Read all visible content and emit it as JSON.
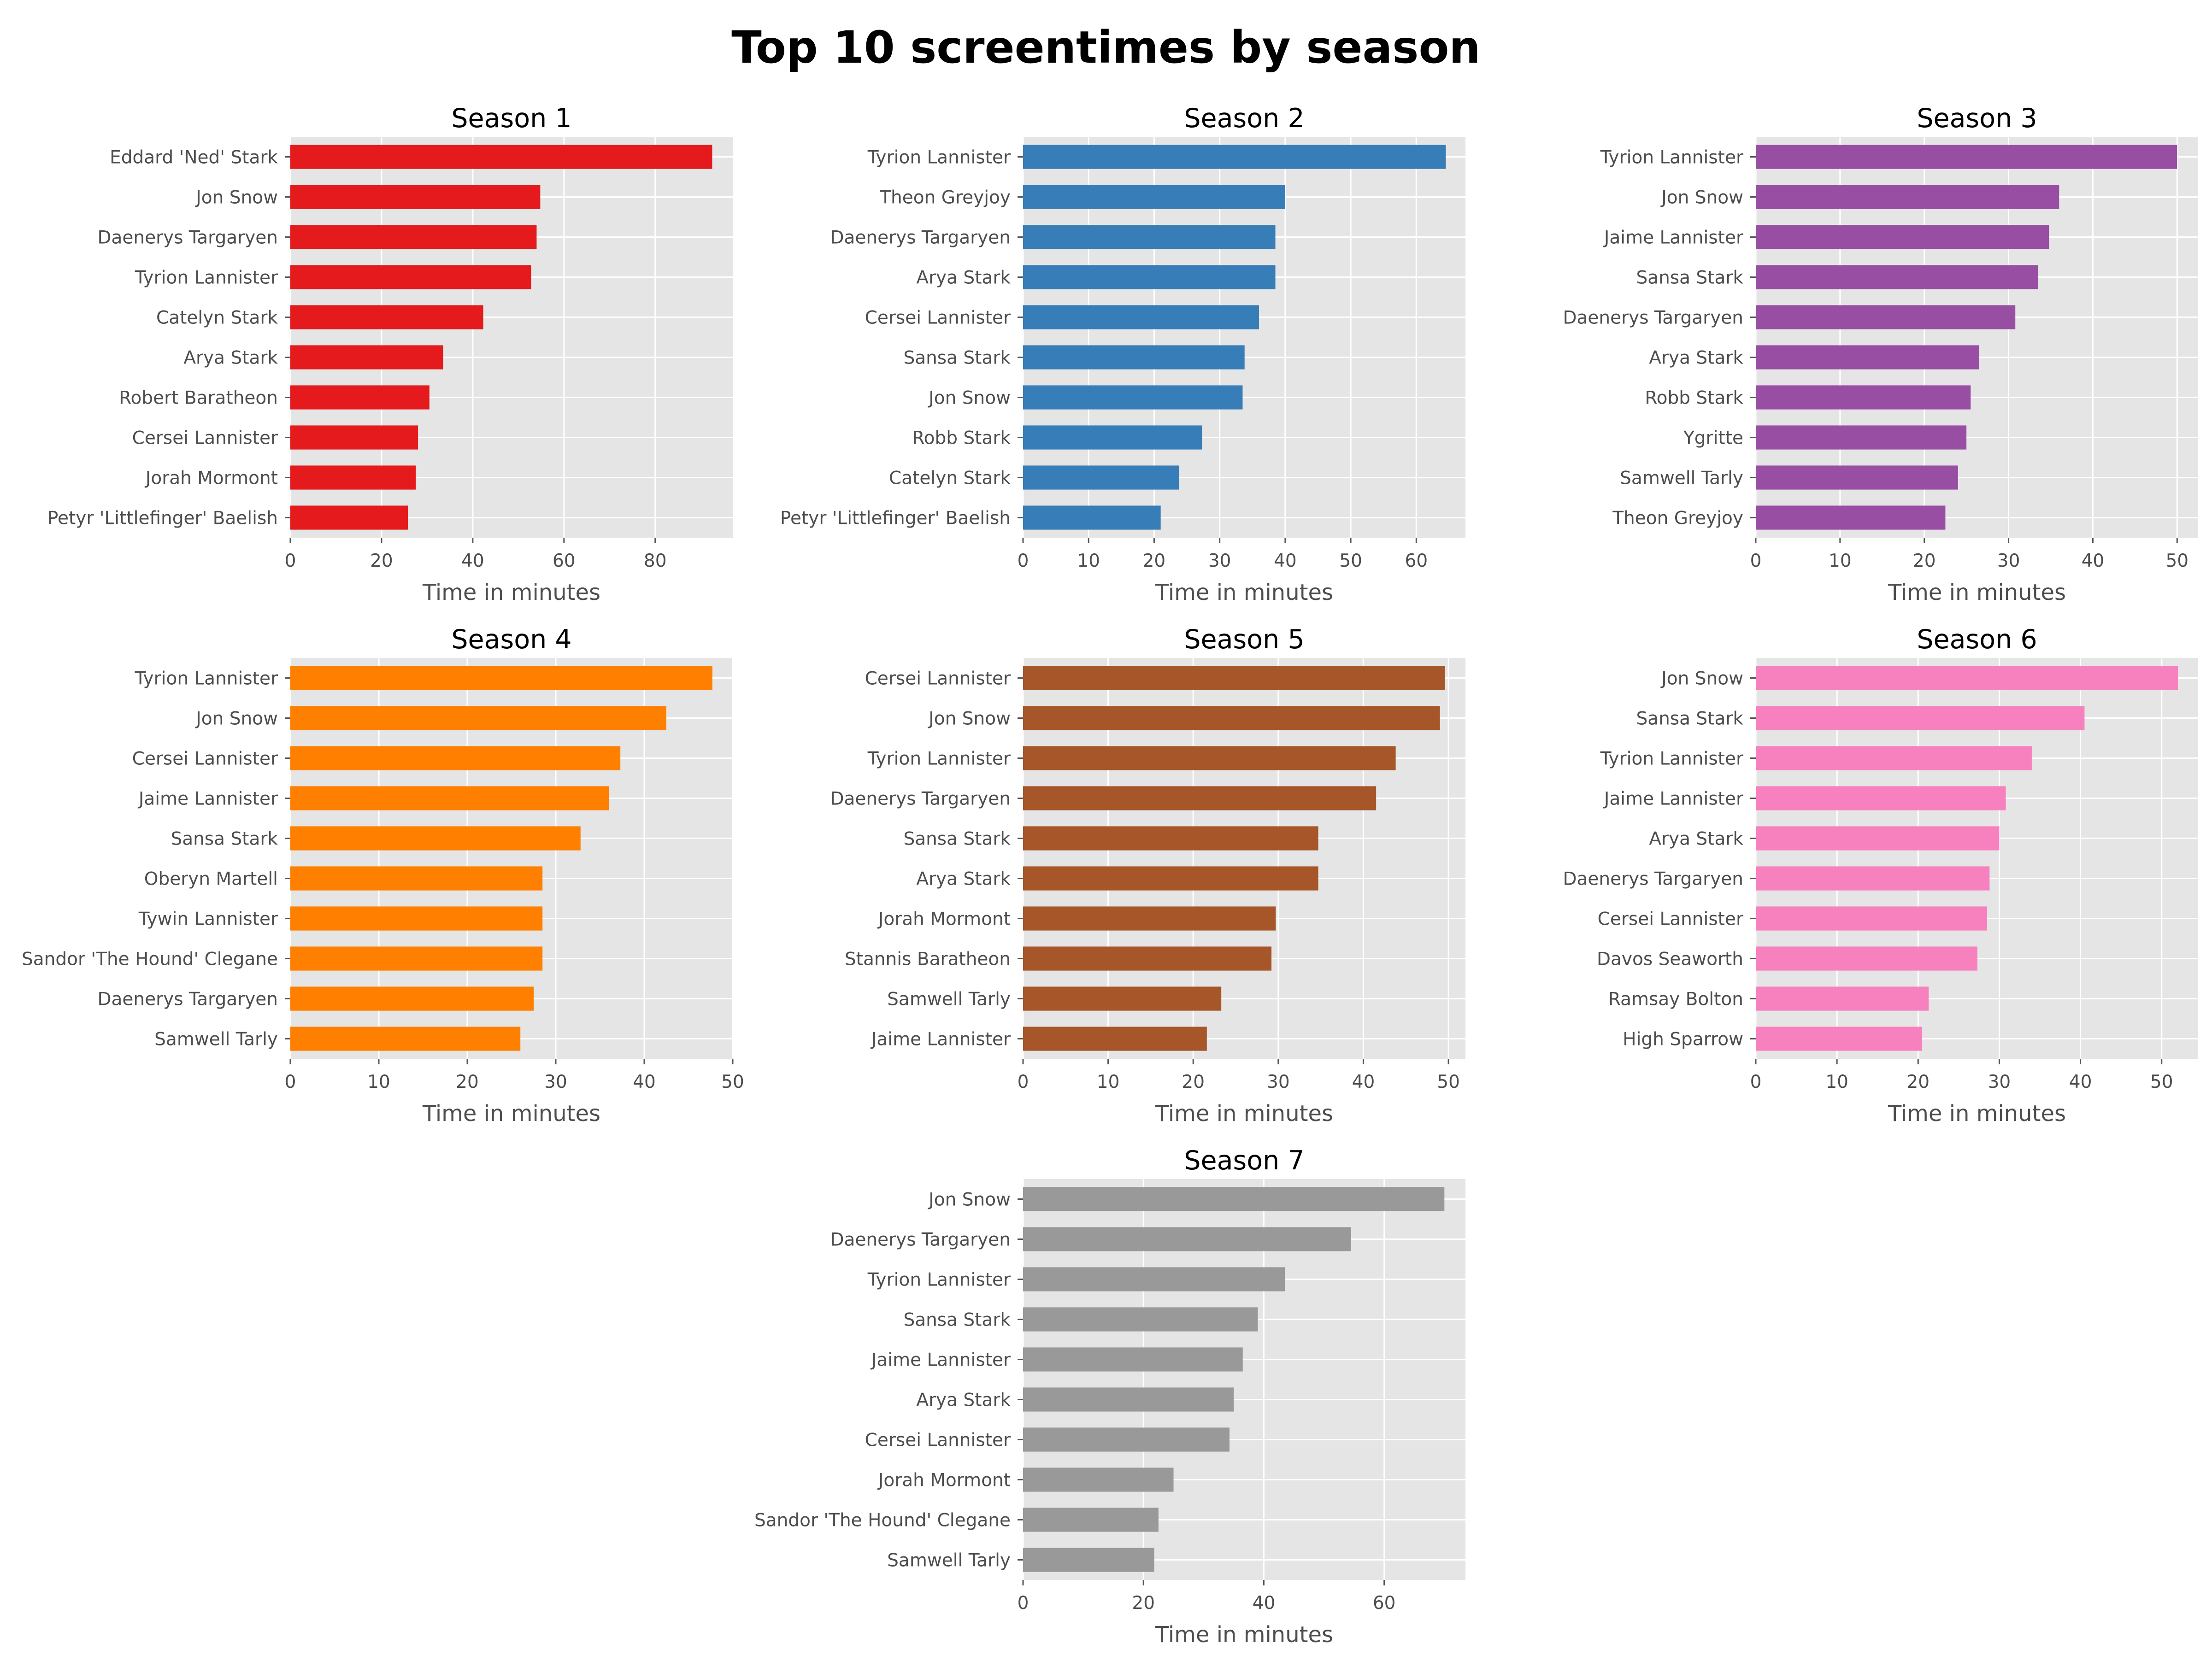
{
  "title": "Top 10 screentimes by season",
  "chart_data": [
    {
      "type": "bar",
      "orientation": "horizontal",
      "title": "Season 1",
      "xlabel": "Time in minutes",
      "color": "#e41a1c",
      "xlim": [
        0,
        97
      ],
      "xticks": [
        0,
        20,
        40,
        60,
        80
      ],
      "categories": [
        "Eddard 'Ned' Stark",
        "Jon Snow",
        "Daenerys Targaryen",
        "Tyrion Lannister",
        "Catelyn Stark",
        "Arya Stark",
        "Robert Baratheon",
        "Cersei Lannister",
        "Jorah Mormont",
        "Petyr 'Littlefinger' Baelish"
      ],
      "values": [
        92.5,
        54.8,
        54.0,
        52.8,
        42.3,
        33.5,
        30.5,
        28.0,
        27.5,
        25.8
      ],
      "grid": true
    },
    {
      "type": "bar",
      "orientation": "horizontal",
      "title": "Season 2",
      "xlabel": "Time in minutes",
      "color": "#377eb8",
      "xlim": [
        0,
        67.5
      ],
      "xticks": [
        0,
        10,
        20,
        30,
        40,
        50,
        60
      ],
      "categories": [
        "Tyrion Lannister",
        "Theon Greyjoy",
        "Daenerys Targaryen",
        "Arya Stark",
        "Cersei Lannister",
        "Sansa Stark",
        "Jon Snow",
        "Robb Stark",
        "Catelyn Stark",
        "Petyr 'Littlefinger' Baelish"
      ],
      "values": [
        64.5,
        40.0,
        38.5,
        38.5,
        36.0,
        33.8,
        33.5,
        27.3,
        23.8,
        21.0
      ],
      "grid": true
    },
    {
      "type": "bar",
      "orientation": "horizontal",
      "title": "Season 3",
      "xlabel": "Time in minutes",
      "color": "#984ea3",
      "xlim": [
        0,
        52.5
      ],
      "xticks": [
        0,
        10,
        20,
        30,
        40,
        50
      ],
      "categories": [
        "Tyrion Lannister",
        "Jon Snow",
        "Jaime Lannister",
        "Sansa Stark",
        "Daenerys Targaryen",
        "Arya Stark",
        "Robb Stark",
        "Ygritte",
        "Samwell Tarly",
        "Theon Greyjoy"
      ],
      "values": [
        50.0,
        36.0,
        34.8,
        33.5,
        30.8,
        26.5,
        25.5,
        25.0,
        24.0,
        22.5
      ],
      "grid": true
    },
    {
      "type": "bar",
      "orientation": "horizontal",
      "title": "Season 4",
      "xlabel": "Time in minutes",
      "color": "#ff7f00",
      "xlim": [
        0,
        50
      ],
      "xticks": [
        0,
        10,
        20,
        30,
        40,
        50
      ],
      "categories": [
        "Tyrion Lannister",
        "Jon Snow",
        "Cersei Lannister",
        "Jaime Lannister",
        "Sansa Stark",
        "Oberyn Martell",
        "Tywin Lannister",
        "Sandor 'The Hound' Clegane",
        "Daenerys Targaryen",
        "Samwell Tarly"
      ],
      "values": [
        47.7,
        42.5,
        37.3,
        36.0,
        32.8,
        28.5,
        28.5,
        28.5,
        27.5,
        26.0
      ],
      "grid": true
    },
    {
      "type": "bar",
      "orientation": "horizontal",
      "title": "Season 5",
      "xlabel": "Time in minutes",
      "color": "#a65628",
      "xlim": [
        0,
        52
      ],
      "xticks": [
        0,
        10,
        20,
        30,
        40,
        50
      ],
      "categories": [
        "Cersei Lannister",
        "Jon Snow",
        "Tyrion Lannister",
        "Daenerys Targaryen",
        "Sansa Stark",
        "Arya Stark",
        "Jorah Mormont",
        "Stannis Baratheon",
        "Samwell Tarly",
        "Jaime Lannister"
      ],
      "values": [
        49.6,
        49.0,
        43.8,
        41.5,
        34.7,
        34.7,
        29.7,
        29.2,
        23.3,
        21.6
      ],
      "grid": true
    },
    {
      "type": "bar",
      "orientation": "horizontal",
      "title": "Season 6",
      "xlabel": "Time in minutes",
      "color": "#f781bf",
      "xlim": [
        0,
        54.5
      ],
      "xticks": [
        0,
        10,
        20,
        30,
        40,
        50
      ],
      "categories": [
        "Jon Snow",
        "Sansa Stark",
        "Tyrion Lannister",
        "Jaime Lannister",
        "Arya Stark",
        "Daenerys Targaryen",
        "Cersei Lannister",
        "Davos Seaworth",
        "Ramsay Bolton",
        "High Sparrow"
      ],
      "values": [
        52.0,
        40.5,
        34.0,
        30.8,
        30.0,
        28.8,
        28.5,
        27.3,
        21.3,
        20.5
      ],
      "grid": true
    },
    {
      "type": "bar",
      "orientation": "horizontal",
      "title": "Season 7",
      "xlabel": "Time in minutes",
      "color": "#999999",
      "xlim": [
        0,
        73.5
      ],
      "xticks": [
        0,
        20,
        40,
        60
      ],
      "categories": [
        "Jon Snow",
        "Daenerys Targaryen",
        "Tyrion Lannister",
        "Sansa Stark",
        "Jaime Lannister",
        "Arya Stark",
        "Cersei Lannister",
        "Jorah Mormont",
        "Sandor 'The Hound' Clegane",
        "Samwell Tarly"
      ],
      "values": [
        70.0,
        54.5,
        43.5,
        39.0,
        36.5,
        35.0,
        34.3,
        25.0,
        22.5,
        21.8
      ],
      "grid": true
    }
  ]
}
